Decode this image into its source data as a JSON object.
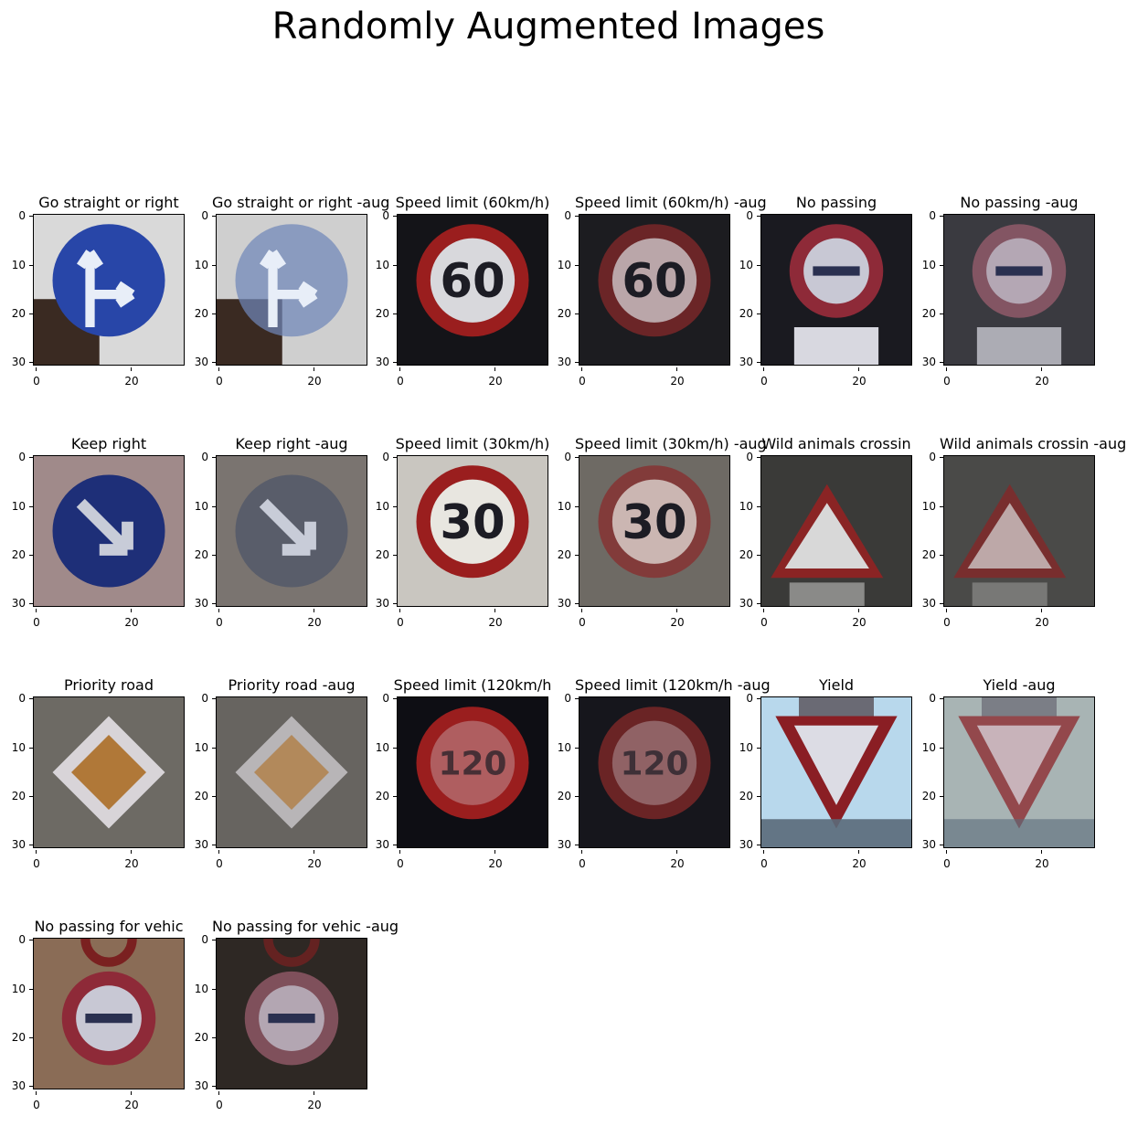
{
  "figure": {
    "title": "Randomly Augmented Images"
  },
  "axes": {
    "yticks": [
      "0",
      "10",
      "20",
      "30"
    ],
    "xticks": [
      "0",
      "20"
    ]
  },
  "panels": [
    {
      "title": "Go straight or right",
      "sign": "straight-right",
      "bg": "#d9d9d9",
      "dark": false
    },
    {
      "title": "Go straight or right -aug",
      "sign": "straight-right",
      "bg": "#cfcfcf",
      "dark": false,
      "aug": true
    },
    {
      "title": "Speed limit (60km/h)",
      "sign": "speed",
      "text": "60",
      "bg": "#141418",
      "dark": true
    },
    {
      "title": "Speed limit (60km/h) -aug",
      "sign": "speed",
      "text": "60",
      "bg": "#1c1c20",
      "dark": true,
      "aug": true
    },
    {
      "title": "No passing",
      "sign": "nopass",
      "bg": "#1a1a20",
      "dark": true
    },
    {
      "title": "No passing -aug",
      "sign": "nopass",
      "bg": "#3a3a40",
      "dark": true,
      "aug": true
    },
    {
      "title": "Keep right",
      "sign": "keepright",
      "bg": "#a08a8a",
      "dark": false
    },
    {
      "title": "Keep right -aug",
      "sign": "keepright",
      "bg": "#7a7470",
      "dark": false,
      "aug": true
    },
    {
      "title": "Speed limit (30km/h)",
      "sign": "speed",
      "text": "30",
      "bg": "#c9c6c0",
      "dark": false
    },
    {
      "title": "Speed limit (30km/h) -aug",
      "sign": "speed",
      "text": "30",
      "bg": "#6e6a64",
      "dark": false,
      "aug": true
    },
    {
      "title": "Wild animals crossin",
      "sign": "triangle",
      "bg": "#3a3a38",
      "dark": true
    },
    {
      "title": "Wild animals crossin -aug",
      "sign": "triangle",
      "bg": "#4a4a48",
      "dark": true,
      "aug": true
    },
    {
      "title": "Priority road",
      "sign": "priority",
      "bg": "#6d6a64",
      "dark": false
    },
    {
      "title": "Priority road -aug",
      "sign": "priority",
      "bg": "#676460",
      "dark": false,
      "aug": true
    },
    {
      "title": "Speed limit (120km/h",
      "sign": "speed",
      "text": "120",
      "bg": "#0e0e14",
      "dark": true
    },
    {
      "title": "Speed limit (120km/h -aug",
      "sign": "speed",
      "text": "120",
      "bg": "#16161c",
      "dark": true,
      "aug": true
    },
    {
      "title": "Yield",
      "sign": "yield",
      "bg": "#b8d8ec",
      "dark": false
    },
    {
      "title": "Yield -aug",
      "sign": "yield",
      "bg": "#a8b4b4",
      "dark": false,
      "aug": true
    },
    {
      "title": "No passing for vehic",
      "sign": "nopass-truck",
      "bg": "#8a6c56",
      "dark": false
    },
    {
      "title": "No passing for vehic -aug",
      "sign": "nopass-truck",
      "bg": "#2e2824",
      "dark": true,
      "aug": true
    }
  ]
}
